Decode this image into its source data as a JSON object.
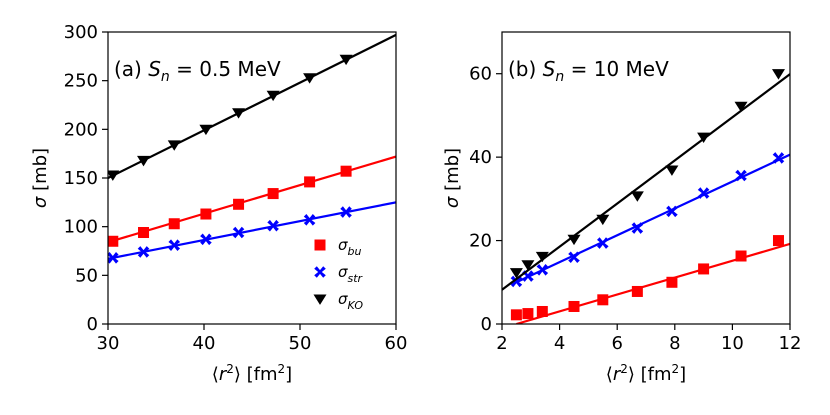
{
  "figure": {
    "legend": {
      "placement": "lower-right",
      "entries": [
        {
          "main": "σ",
          "sub": "bu",
          "marker": "square",
          "color": "#ff0000"
        },
        {
          "main": "σ",
          "sub": "str",
          "marker": "x",
          "color": "#0000ff"
        },
        {
          "main": "σ",
          "sub": "KO",
          "marker": "triangle-down",
          "color": "#000000"
        }
      ]
    }
  },
  "chart_data": [
    {
      "type": "scatter",
      "title": "(a) S_n = 0.5 MeV",
      "title_parts": {
        "prefix": "(a) ",
        "var": "S",
        "sub": "n",
        "suffix": " = 0.5 MeV"
      },
      "xlabel": "⟨r²⟩ [fm²]",
      "ylabel": "σ [mb]",
      "xlim": [
        30,
        60
      ],
      "ylim": [
        0,
        300
      ],
      "xticks": [
        30,
        40,
        50,
        60
      ],
      "yticks": [
        0,
        50,
        100,
        150,
        200,
        250,
        300
      ],
      "series": [
        {
          "name": "σ_bu",
          "marker": "square",
          "color": "#ff0000",
          "x": [
            30.5,
            33.7,
            36.9,
            40.2,
            43.6,
            47.2,
            51.0,
            54.8
          ],
          "y": [
            85,
            94,
            103,
            113,
            123,
            134,
            146,
            157
          ],
          "fit": {
            "x": [
              30,
              60
            ],
            "y": [
              84,
              172
            ]
          }
        },
        {
          "name": "σ_str",
          "marker": "x",
          "color": "#0000ff",
          "x": [
            30.5,
            33.7,
            36.9,
            40.2,
            43.6,
            47.2,
            51.0,
            54.8
          ],
          "y": [
            68,
            74,
            81,
            87,
            94,
            101,
            107,
            115
          ],
          "fit": {
            "x": [
              30,
              60
            ],
            "y": [
              67,
              125
            ]
          }
        },
        {
          "name": "σ_KO",
          "marker": "triangle-down",
          "color": "#000000",
          "x": [
            30.5,
            33.7,
            36.9,
            40.2,
            43.6,
            47.2,
            51.0,
            54.8
          ],
          "y": [
            153,
            168,
            184,
            200,
            217,
            235,
            253,
            272
          ],
          "fit": {
            "x": [
              30,
              60
            ],
            "y": [
              150,
              297
            ]
          }
        }
      ]
    },
    {
      "type": "scatter",
      "title": "(b) S_n = 10 MeV",
      "title_parts": {
        "prefix": "(b) ",
        "var": "S",
        "sub": "n",
        "suffix": " = 10 MeV"
      },
      "xlabel": "⟨r²⟩ [fm²]",
      "ylabel": "σ [mb]",
      "xlim": [
        2,
        12
      ],
      "ylim": [
        0,
        70
      ],
      "xticks": [
        2,
        4,
        6,
        8,
        10,
        12
      ],
      "yticks": [
        0,
        20,
        40,
        60
      ],
      "series": [
        {
          "name": "σ_bu",
          "marker": "square",
          "color": "#ff0000",
          "x": [
            2.5,
            2.9,
            3.4,
            4.5,
            5.5,
            6.7,
            7.9,
            9.0,
            10.3,
            11.6
          ],
          "y": [
            2.2,
            2.5,
            3.0,
            4.2,
            5.8,
            7.8,
            10.0,
            13.2,
            16.3,
            20.0
          ],
          "fit": {
            "x": [
              2.5,
              12
            ],
            "y": [
              0,
              19.2
            ]
          }
        },
        {
          "name": "σ_str",
          "marker": "x",
          "color": "#0000ff",
          "x": [
            2.5,
            2.9,
            3.4,
            4.5,
            5.5,
            6.7,
            7.9,
            9.0,
            10.3,
            11.6
          ],
          "y": [
            10.2,
            11.5,
            13.0,
            16.0,
            19.4,
            23.0,
            27.0,
            31.4,
            35.6,
            39.8
          ],
          "fit": {
            "x": [
              2.5,
              12
            ],
            "y": [
              10.0,
              40.6
            ]
          }
        },
        {
          "name": "σ_KO",
          "marker": "triangle-down",
          "color": "#000000",
          "x": [
            2.5,
            2.9,
            3.4,
            4.5,
            5.5,
            6.7,
            7.9,
            9.0,
            10.3,
            11.6
          ],
          "y": [
            12.3,
            14.2,
            16.2,
            20.3,
            25.1,
            30.7,
            36.9,
            44.8,
            52.2,
            60.0
          ],
          "fit": {
            "x": [
              2,
              12
            ],
            "y": [
              8.2,
              59.9
            ]
          }
        }
      ]
    }
  ]
}
